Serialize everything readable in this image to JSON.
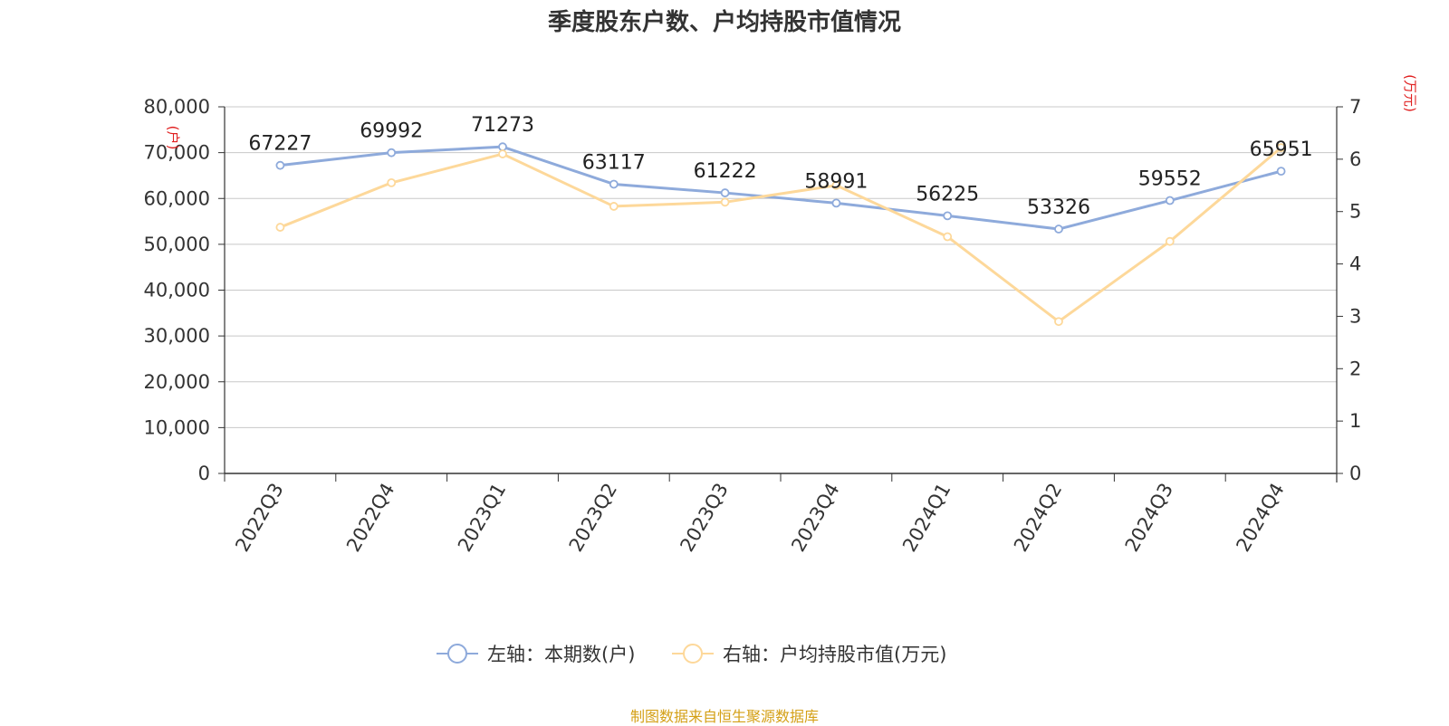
{
  "chart_data": {
    "type": "line",
    "title": "季度股东户数、户均持股市值情况",
    "categories": [
      "2022Q3",
      "2022Q4",
      "2023Q1",
      "2023Q2",
      "2023Q3",
      "2023Q4",
      "2024Q1",
      "2024Q2",
      "2024Q3",
      "2024Q4"
    ],
    "series": [
      {
        "name": "左轴：本期数(户)",
        "axis": "left",
        "color": "#8eaadb",
        "values": [
          67227,
          69992,
          71273,
          63117,
          61222,
          58991,
          56225,
          53326,
          59552,
          65951
        ],
        "data_labels": [
          "67227",
          "69992",
          "71273",
          "63117",
          "61222",
          "58991",
          "56225",
          "53326",
          "59552",
          "65951"
        ]
      },
      {
        "name": "右轴：户均持股市值(万元)",
        "axis": "right",
        "color": "#fdd89a",
        "values": [
          4.7,
          5.55,
          6.1,
          5.1,
          5.18,
          5.5,
          4.52,
          2.9,
          4.43,
          6.22
        ]
      }
    ],
    "y_left": {
      "label": "(户)",
      "ylim": [
        0,
        80000
      ],
      "ticks": [
        "0",
        "10,000",
        "20,000",
        "30,000",
        "40,000",
        "50,000",
        "60,000",
        "70,000",
        "80,000"
      ]
    },
    "y_right": {
      "label": "(万元)",
      "ylim": [
        0,
        7
      ],
      "ticks": [
        "0",
        "1",
        "2",
        "3",
        "4",
        "5",
        "6",
        "7"
      ]
    },
    "grid": true,
    "legend_position": "bottom"
  },
  "footer": {
    "source": "制图数据来自恒生聚源数据库"
  }
}
